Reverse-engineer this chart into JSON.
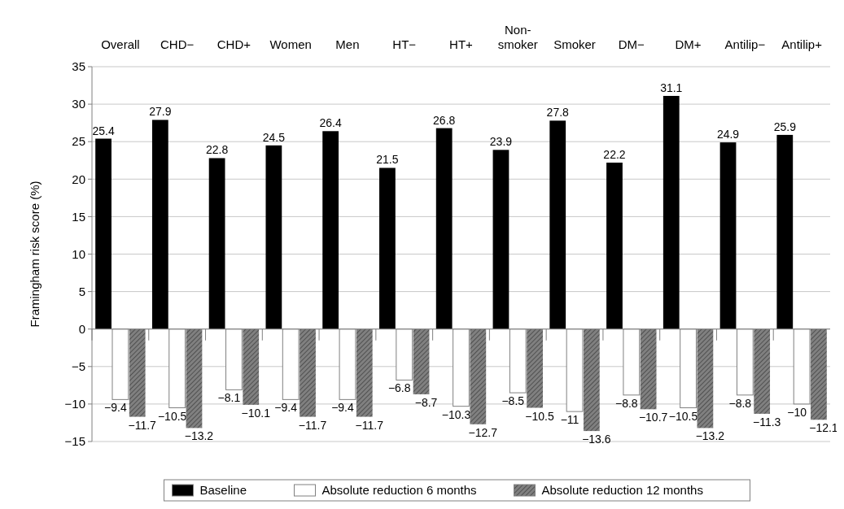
{
  "chart_data": {
    "type": "bar",
    "ylabel": "Framingham risk score (%)",
    "categories": [
      "Overall",
      "CHD−",
      "CHD+",
      "Women",
      "Men",
      "HT−",
      "HT+",
      "Non-smoker",
      "Smoker",
      "DM−",
      "DM+",
      "Antilip−",
      "Antilip+"
    ],
    "series": [
      {
        "name": "Baseline",
        "color": "#000000",
        "values": [
          25.4,
          27.9,
          22.8,
          24.5,
          26.4,
          21.5,
          26.8,
          23.9,
          27.8,
          22.2,
          31.1,
          24.9,
          25.9
        ],
        "value_labels": [
          "25.4",
          "27.9",
          "22.8",
          "24.5",
          "26.4",
          "21.5",
          "26.8",
          "23.9",
          "27.8",
          "22.2",
          "31.1",
          "24.9",
          "25.9"
        ]
      },
      {
        "name": "Absolute reduction 6 months",
        "color": "#ffffff",
        "values": [
          -9.4,
          -10.5,
          -8.1,
          -9.4,
          -9.4,
          -6.8,
          -10.3,
          -8.5,
          -11,
          -8.8,
          -10.5,
          -8.8,
          -10
        ],
        "value_labels": [
          "−9.4",
          "−10.5",
          "−8.1",
          "−9.4",
          "−9.4",
          "−6.8",
          "−10.3",
          "−8.5",
          "−11",
          "−8.8",
          "−10.5",
          "−8.8",
          "−10"
        ]
      },
      {
        "name": "Absolute reduction 12 months",
        "color": "#808080",
        "values": [
          -11.7,
          -13.2,
          -10.1,
          -11.7,
          -11.7,
          -8.7,
          -12.7,
          -10.5,
          -13.6,
          -10.7,
          -13.2,
          -11.3,
          -12.1
        ],
        "value_labels": [
          "−11.7",
          "−13.2",
          "−10.1",
          "−11.7",
          "−11.7",
          "−8.7",
          "−12.7",
          "−10.5",
          "−13.6",
          "−10.7",
          "−13.2",
          "−11.3",
          "−12.1"
        ]
      }
    ],
    "ylim": [
      -15,
      35
    ],
    "yticks": [
      {
        "value": -15,
        "label": "−15"
      },
      {
        "value": -10,
        "label": "−10"
      },
      {
        "value": -5,
        "label": "−5"
      },
      0,
      5,
      10,
      15,
      20,
      25,
      30,
      35
    ],
    "grid": "y",
    "legend": "bottom"
  }
}
